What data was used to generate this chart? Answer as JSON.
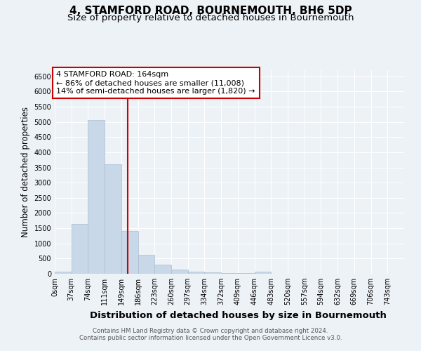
{
  "title": "4, STAMFORD ROAD, BOURNEMOUTH, BH6 5DP",
  "subtitle": "Size of property relative to detached houses in Bournemouth",
  "xlabel": "Distribution of detached houses by size in Bournemouth",
  "ylabel": "Number of detached properties",
  "footnote1": "Contains HM Land Registry data © Crown copyright and database right 2024.",
  "footnote2": "Contains public sector information licensed under the Open Government Licence v3.0.",
  "bar_labels": [
    "0sqm",
    "37sqm",
    "74sqm",
    "111sqm",
    "149sqm",
    "186sqm",
    "223sqm",
    "260sqm",
    "297sqm",
    "334sqm",
    "372sqm",
    "409sqm",
    "446sqm",
    "483sqm",
    "520sqm",
    "557sqm",
    "594sqm",
    "632sqm",
    "669sqm",
    "706sqm",
    "743sqm"
  ],
  "bar_values": [
    75,
    1650,
    5050,
    3600,
    1400,
    620,
    290,
    145,
    80,
    55,
    25,
    20,
    60,
    0,
    0,
    0,
    0,
    0,
    0,
    0,
    0
  ],
  "bar_color": "#c8d8e8",
  "bar_edge_color": "#a8bece",
  "vline_color": "#cc0000",
  "annotation_text1": "4 STAMFORD ROAD: 164sqm",
  "annotation_text2": "← 86% of detached houses are smaller (11,008)",
  "annotation_text3": "14% of semi-detached houses are larger (1,820) →",
  "ylim": [
    0,
    6700
  ],
  "yticks": [
    0,
    500,
    1000,
    1500,
    2000,
    2500,
    3000,
    3500,
    4000,
    4500,
    5000,
    5500,
    6000,
    6500
  ],
  "background_color": "#edf2f7",
  "grid_color": "#ffffff",
  "title_fontsize": 11,
  "subtitle_fontsize": 9.5,
  "xlabel_fontsize": 9.5,
  "ylabel_fontsize": 8.5,
  "tick_fontsize": 7,
  "annot_fontsize": 8
}
